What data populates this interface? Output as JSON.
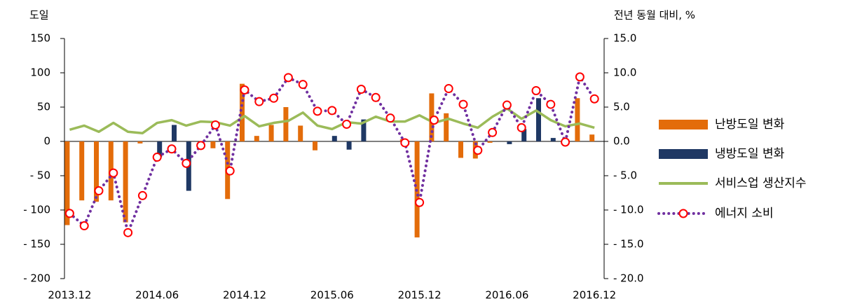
{
  "chart_data": {
    "type": "bar_line",
    "y_label": "도일",
    "y2_label": "전년 동월 대비, %",
    "categories": [
      "2013.12",
      null,
      null,
      null,
      null,
      null,
      "2014.06",
      null,
      null,
      null,
      null,
      null,
      "2014.12",
      null,
      null,
      null,
      null,
      null,
      "2015.06",
      null,
      null,
      null,
      null,
      null,
      "2015.12",
      null,
      null,
      null,
      null,
      null,
      "2016.06",
      null,
      null,
      null,
      null,
      null,
      "2016.12"
    ],
    "ylim": [
      -200,
      150
    ],
    "yticks": [
      {
        "value": -200,
        "label": "- 200"
      },
      {
        "value": -150,
        "label": "- 150"
      },
      {
        "value": -100,
        "label": "- 100"
      },
      {
        "value": -50,
        "label": "- 50"
      },
      0,
      50,
      100,
      150
    ],
    "y2lim": [
      -20,
      15
    ],
    "y2ticks": [
      {
        "value": -20,
        "label": "- 20.0"
      },
      {
        "value": -15,
        "label": "- 15.0"
      },
      {
        "value": -10,
        "label": "- 10.0"
      },
      {
        "value": -5,
        "label": "- 5.0"
      },
      {
        "value": 0,
        "label": "0.0"
      },
      {
        "value": 5,
        "label": "5.0"
      },
      {
        "value": 10,
        "label": "10.0"
      },
      {
        "value": 15,
        "label": "15.0"
      }
    ],
    "series": [
      {
        "name": "난방도일 변화",
        "type": "bar",
        "color": "#e36c0a",
        "values": [
          -122,
          -86,
          -88,
          -86,
          -118,
          -3,
          0,
          0,
          0,
          0,
          -10,
          -84,
          84,
          8,
          24,
          50,
          23,
          -13,
          0,
          0,
          0,
          0,
          0,
          3,
          -140,
          70,
          41,
          -24,
          -25,
          -2,
          0,
          0,
          0,
          0,
          0,
          63,
          10
        ]
      },
      {
        "name": "냉방도일 변화",
        "type": "bar",
        "color": "#1f3864",
        "values": [
          0,
          0,
          0,
          0,
          0,
          0,
          -23,
          24,
          -72,
          0,
          0,
          0,
          0,
          0,
          0,
          0,
          0,
          0,
          8,
          -12,
          32,
          0,
          0,
          0,
          0,
          0,
          0,
          0,
          0,
          0,
          -4,
          18,
          63,
          5,
          0,
          0,
          0
        ]
      },
      {
        "name": "서비스업 생산지수",
        "type": "line",
        "axis": "y2",
        "color": "#9bbb59",
        "values": [
          1.7,
          2.3,
          1.4,
          2.7,
          1.4,
          1.2,
          2.7,
          3.1,
          2.3,
          2.9,
          2.8,
          2.3,
          3.7,
          2.2,
          2.7,
          3.0,
          4.2,
          2.3,
          1.8,
          2.8,
          2.6,
          3.6,
          2.9,
          2.9,
          3.8,
          2.7,
          3.3,
          2.6,
          2.0,
          3.6,
          4.8,
          3.3,
          4.5,
          3.1,
          2.2,
          2.6,
          2.0
        ]
      },
      {
        "name": "에너지 소비",
        "type": "dotted_marker",
        "axis": "y2",
        "color": "#7030a0",
        "marker_color": "#ff0000",
        "values": [
          -10.5,
          -12.3,
          -7.2,
          -4.6,
          -13.3,
          -7.9,
          -2.3,
          -1.1,
          -3.2,
          -0.6,
          2.4,
          -4.3,
          7.5,
          5.8,
          6.3,
          9.3,
          8.3,
          4.4,
          4.5,
          2.5,
          7.6,
          6.4,
          3.4,
          -0.2,
          -8.9,
          3.1,
          7.7,
          5.4,
          -1.3,
          1.3,
          5.3,
          2.0,
          7.4,
          5.4,
          -0.1,
          9.4,
          6.2
        ]
      }
    ]
  }
}
